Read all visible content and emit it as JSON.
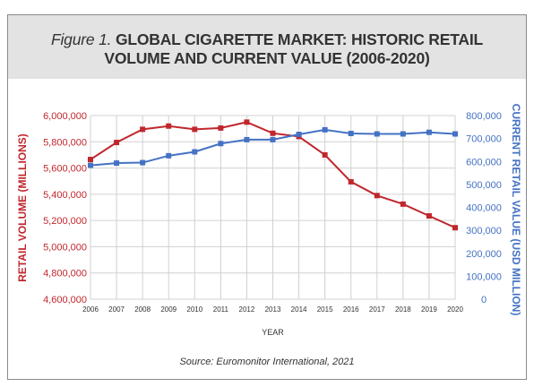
{
  "title": {
    "figure_label": "Figure 1.",
    "line1": "GLOBAL CIGARETTE MARKET: HISTORIC RETAIL",
    "line2": "VOLUME AND CURRENT VALUE (2006-2020)"
  },
  "source": "Source: Euromonitor International, 2021",
  "colors": {
    "volume": "#c0272d",
    "value": "#4472c4",
    "grid": "#d0d0d0",
    "title_band": "#e3e3e3"
  },
  "chart_data": {
    "type": "line",
    "xlabel": "YEAR",
    "ylabel_left": "RETAIL VOLUME (MILLIONS)",
    "ylabel_right": "CURRENT RETAIL VALUE (USD MILLION)",
    "x": [
      "2006",
      "2007",
      "2008",
      "2009",
      "2010",
      "2011",
      "2012",
      "2013",
      "2014",
      "2015",
      "2016",
      "2017",
      "2018",
      "2019",
      "2020"
    ],
    "y_left_ticks": [
      "6,000,000",
      "5,800,000",
      "5,600,000",
      "5,400,000",
      "5,200,000",
      "5,000,000",
      "4,800,000",
      "4,600,000"
    ],
    "y_right_ticks": [
      "800,000",
      "700,000",
      "600,000",
      "500,000",
      "400,000",
      "300,000",
      "200,000",
      "100,000",
      "0"
    ],
    "ylim_left": [
      4600000,
      6000000
    ],
    "ylim_right": [
      0,
      800000
    ],
    "grid": true,
    "series": [
      {
        "axis": "left",
        "color": "#c0272d",
        "marker": "square",
        "values": [
          5665000,
          5795000,
          5895000,
          5920000,
          5895000,
          5905000,
          5950000,
          5865000,
          5840000,
          5700000,
          5495000,
          5390000,
          5325000,
          5235000,
          5145000
        ]
      },
      {
        "axis": "right",
        "color": "#4472c4",
        "marker": "square",
        "values": [
          583000,
          593000,
          595000,
          625000,
          642000,
          678000,
          695000,
          695000,
          718000,
          738000,
          722000,
          720000,
          720000,
          727000,
          720000
        ]
      }
    ]
  }
}
